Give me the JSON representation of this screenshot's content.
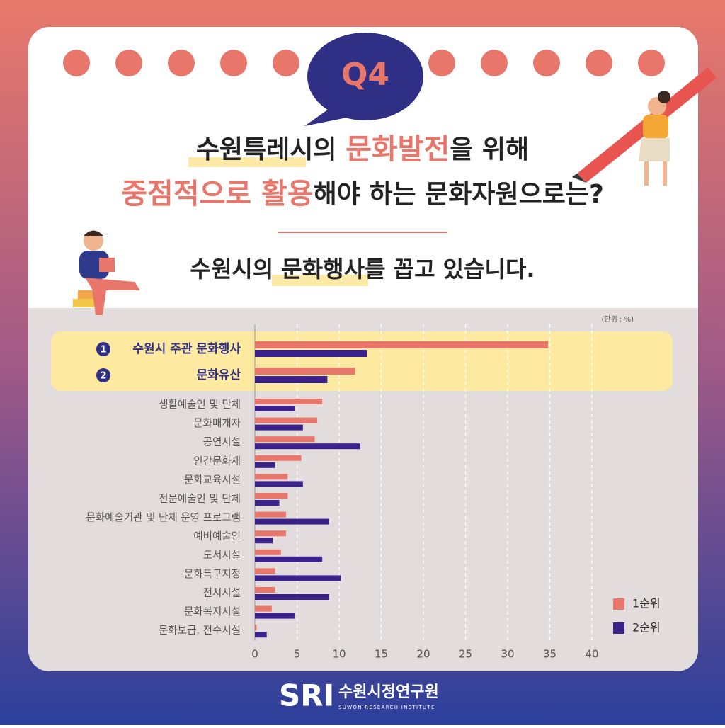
{
  "question": {
    "label": "Q4",
    "line1": [
      "수원특레시의 ",
      "문화발전",
      "을 위해"
    ],
    "line2": [
      "중점적으로 활용",
      "해야 하는 문화자원으로는?"
    ]
  },
  "answer": [
    "수원시의 ",
    "문화행사",
    "를 꼽고 있습니다."
  ],
  "chart_data": {
    "type": "hbar",
    "unit_note": "(단위 : %)",
    "highlight_markers": [
      "1",
      "2"
    ],
    "categories": [
      "수원시 주관 문화행사",
      "문화유산",
      "생활예술인 및 단체",
      "문화매개자",
      "공연시설",
      "인간문화재",
      "문화교육시설",
      "전문예술인 및 단체",
      "문화예술기관 및 단체 운영 프로그램",
      "예비예술인",
      "도서시설",
      "문화특구지정",
      "전시시설",
      "문화복지시설",
      "문화보급, 전수시설"
    ],
    "series": [
      {
        "name": "1순위",
        "color": "#e8766a",
        "values": [
          34.8,
          11.9,
          8.0,
          7.4,
          7.1,
          5.5,
          3.9,
          3.9,
          3.7,
          3.7,
          3.1,
          2.4,
          2.4,
          2.0,
          0.2
        ]
      },
      {
        "name": "2순위",
        "color": "#3a228a",
        "values": [
          13.3,
          8.6,
          4.7,
          5.7,
          12.5,
          2.4,
          5.7,
          2.9,
          8.8,
          2.1,
          8.0,
          10.2,
          8.8,
          4.7,
          1.4
        ]
      }
    ],
    "xlim": [
      0,
      40
    ],
    "xticks": [
      0,
      5,
      10,
      15,
      20,
      25,
      30,
      35,
      40
    ],
    "grid": true
  },
  "footer": {
    "logo": "SRI",
    "name": "수원시정연구원",
    "name_en": "SUWON RESEARCH INSTITUTE"
  }
}
